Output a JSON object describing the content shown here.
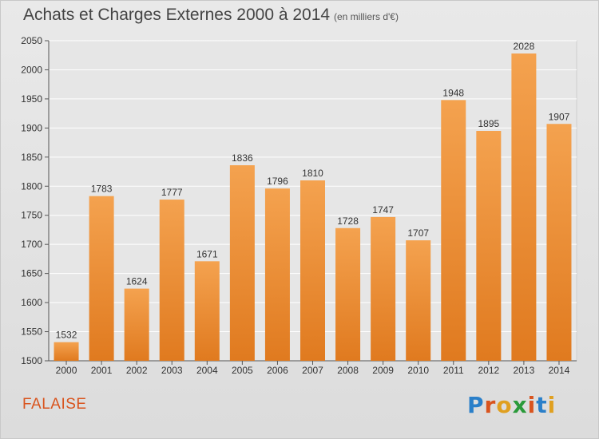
{
  "header": {
    "title": "Achats et Charges Externes 2000 à 2014",
    "unit_note": "(en milliers d'€)"
  },
  "footer": {
    "commune": "FALAISE",
    "logo_text": "Proxiti"
  },
  "colors": {
    "bar_light": "#f4a24f",
    "bar_dark": "#e07a1f",
    "commune_text": "#d9541e"
  },
  "chart_data": {
    "type": "bar",
    "title": "Achats et Charges Externes 2000 à 2014",
    "subtitle": "(en milliers d'€)",
    "categories": [
      "2000",
      "2001",
      "2002",
      "2003",
      "2004",
      "2005",
      "2006",
      "2007",
      "2008",
      "2009",
      "2010",
      "2011",
      "2012",
      "2013",
      "2014"
    ],
    "values": [
      1532,
      1783,
      1624,
      1777,
      1671,
      1836,
      1796,
      1810,
      1728,
      1747,
      1707,
      1948,
      1895,
      2028,
      1907
    ],
    "ylim": [
      1500,
      2050
    ],
    "yticks": [
      1500,
      1550,
      1600,
      1650,
      1700,
      1750,
      1800,
      1850,
      1900,
      1950,
      2000,
      2050
    ],
    "grid": true,
    "data_labels": true
  }
}
